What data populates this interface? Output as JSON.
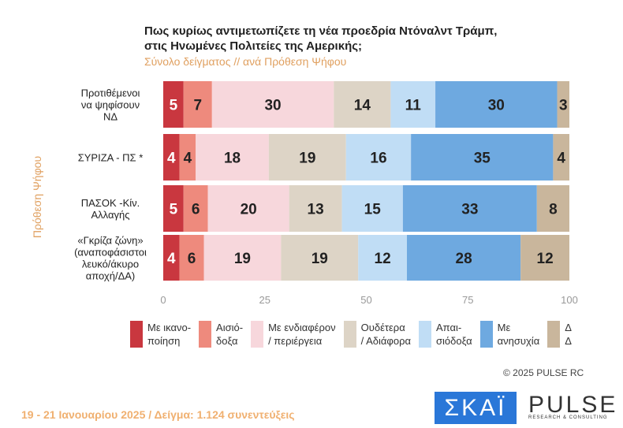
{
  "header": {
    "title_line1": "Πως κυρίως αντιμετωπίζετε τη νέα προεδρία Ντόναλντ Τράμπ,",
    "title_line2": "στις Ηνωμένες Πολιτείες της Αμερικής;",
    "subtitle": "Σύνολο δείγματος // ανά Πρόθεση Ψήφου"
  },
  "chart_data": {
    "type": "bar",
    "orientation": "horizontal",
    "stacked": true,
    "ylabel": "Πρόθεση Ψήφου",
    "categories": [
      [
        "Προτιθέμενοι",
        "να ψηφίσουν",
        "ΝΔ"
      ],
      [
        "ΣΥΡΙΖΑ - ΠΣ *"
      ],
      [
        "ΠΑΣΟΚ -Κίν.",
        "Αλλαγής"
      ],
      [
        "«Γκρίζα ζώνη»",
        "(αναποφάσιστοι",
        "λευκό/άκυρο",
        "αποχή/ΔΑ)"
      ]
    ],
    "xlim": [
      0,
      100
    ],
    "xticks": [
      0,
      25,
      50,
      75,
      100
    ],
    "series": [
      {
        "name": "Με ικανο- ποίηση",
        "color": "#c9373f",
        "values": [
          5,
          4,
          5,
          4
        ]
      },
      {
        "name": "Αισιό- δοξα",
        "color": "#ee8a7d",
        "values": [
          7,
          4,
          6,
          6
        ]
      },
      {
        "name": "Με ενδιαφέρον / περιέργεια",
        "color": "#f7d7dc",
        "values": [
          30,
          18,
          20,
          19
        ]
      },
      {
        "name": "Ουδέτερα / Αδιάφορα",
        "color": "#ddd4c6",
        "values": [
          14,
          19,
          13,
          19
        ]
      },
      {
        "name": "Απαι- σιόδοξα",
        "color": "#c0ddf5",
        "values": [
          11,
          16,
          15,
          12
        ]
      },
      {
        "name": "Με ανησυχία",
        "color": "#6ea9e0",
        "values": [
          30,
          35,
          33,
          28
        ]
      },
      {
        "name": "Δ Δ",
        "color": "#c9b69c",
        "values": [
          3,
          4,
          8,
          12
        ]
      }
    ]
  },
  "legend": [
    [
      "Με ικανο-",
      "ποίηση"
    ],
    [
      "Αισιό-",
      "δοξα"
    ],
    [
      "Με ενδιαφέρον",
      "/ περιέργεια"
    ],
    [
      "Ουδέτερα",
      "/ Αδιάφορα"
    ],
    [
      "Απαι-",
      "σιόδοξα"
    ],
    [
      "Με",
      "ανησυχία"
    ],
    [
      "Δ",
      "Δ"
    ]
  ],
  "copyright": "©  2025  PULSE RC",
  "footer": "19 - 21 Ιανουαρίου 2025  /  Δείγμα:  1.124 συνεντεύξεις",
  "logos": {
    "skai": "ΣΚΑΪ",
    "pulse": "PULSE",
    "pulse_tag": "RESEARCH & CONSULTING"
  }
}
